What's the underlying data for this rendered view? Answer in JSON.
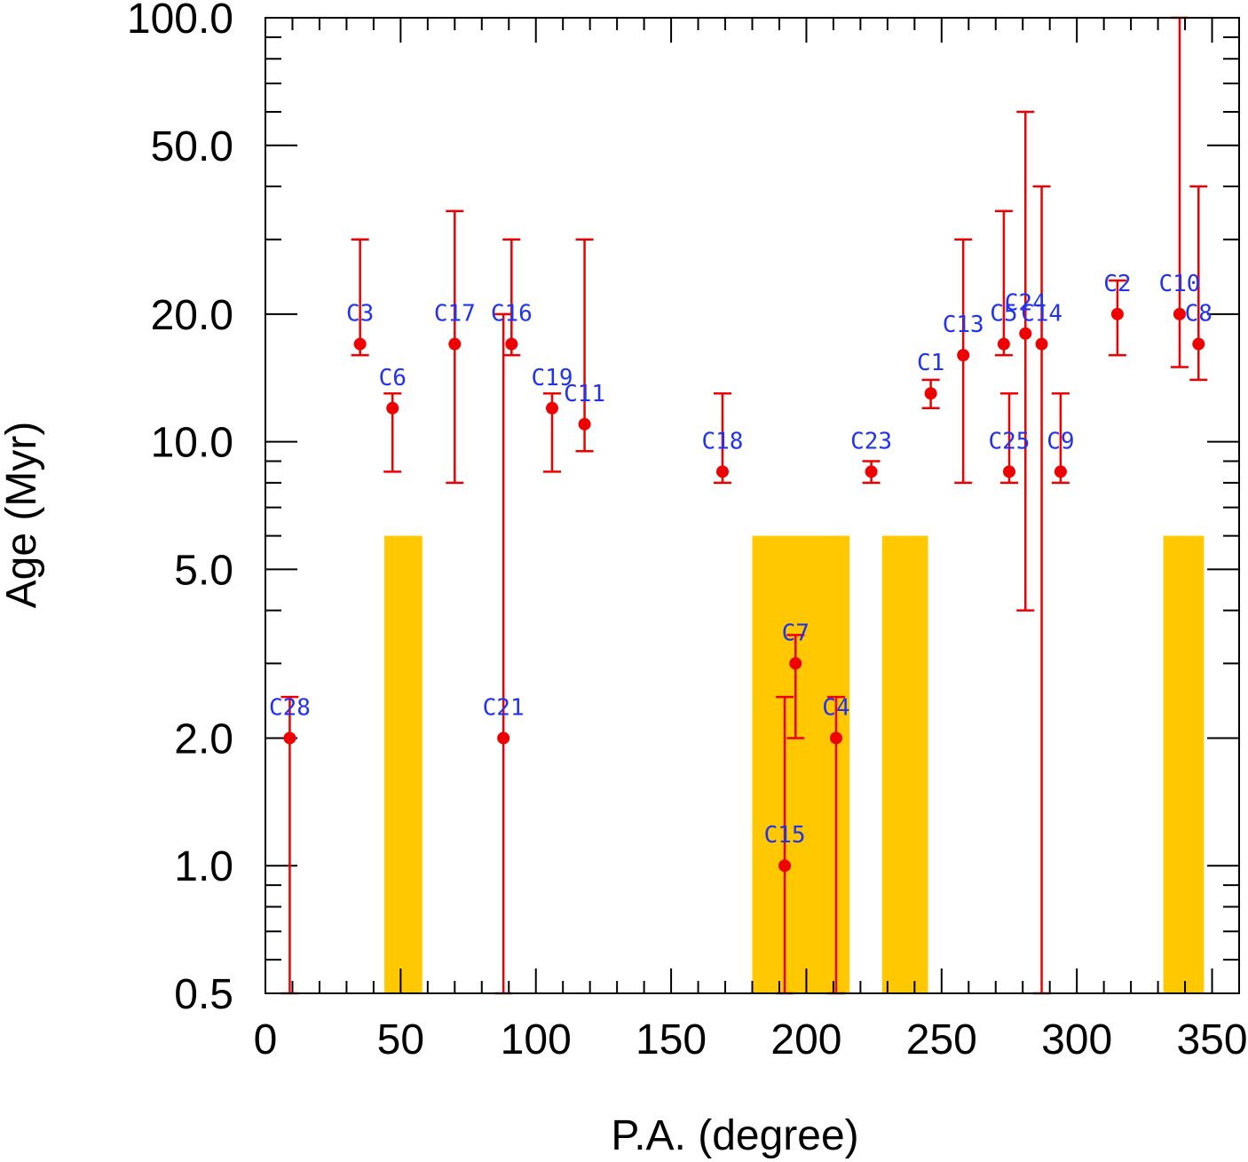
{
  "chart_data": {
    "type": "scatter",
    "title": "",
    "xlabel": "P.A. (degree)",
    "ylabel": "Age (Myr)",
    "xlim": [
      0,
      360
    ],
    "ylim": [
      0.5,
      100
    ],
    "yscale": "log",
    "x_ticks": [
      0,
      50,
      100,
      150,
      200,
      250,
      300,
      350
    ],
    "x_tick_labels": [
      "0",
      "50",
      "100",
      "150",
      "200",
      "250",
      "300",
      "350"
    ],
    "y_ticks": [
      0.5,
      1,
      2,
      5,
      10,
      20,
      50,
      100
    ],
    "y_tick_labels": [
      "0.5",
      "1.0",
      "2.0",
      "5.0",
      "10.0",
      "20.0",
      "50.0",
      "100.0"
    ],
    "colors": {
      "points": "#ee0000",
      "labels": "#2233ee",
      "bands": "#ffc800",
      "axes": "#000000"
    },
    "bands": [
      {
        "x0": 44,
        "x1": 58,
        "ymax": 6.0
      },
      {
        "x0": 180,
        "x1": 216,
        "ymax": 6.0
      },
      {
        "x0": 228,
        "x1": 245,
        "ymax": 6.0
      },
      {
        "x0": 332,
        "x1": 347,
        "ymax": 6.0
      }
    ],
    "series": [
      {
        "name": "clusters",
        "points": [
          {
            "label": "C28",
            "x": 9,
            "y": 2.0,
            "ylow": 0.5,
            "yhigh": 2.5
          },
          {
            "label": "C3",
            "x": 35,
            "y": 17.0,
            "ylow": 16.0,
            "yhigh": 30.0
          },
          {
            "label": "C6",
            "x": 47,
            "y": 12.0,
            "ylow": 8.5,
            "yhigh": 13.0
          },
          {
            "label": "C17",
            "x": 70,
            "y": 17.0,
            "ylow": 8.0,
            "yhigh": 35.0
          },
          {
            "label": "C16",
            "x": 91,
            "y": 17.0,
            "ylow": 16.0,
            "yhigh": 30.0
          },
          {
            "label": "C21",
            "x": 88,
            "y": 2.0,
            "ylow": 0.5,
            "yhigh": 20.0
          },
          {
            "label": "C19",
            "x": 106,
            "y": 12.0,
            "ylow": 8.5,
            "yhigh": 13.0
          },
          {
            "label": "C11",
            "x": 118,
            "y": 11.0,
            "ylow": 9.5,
            "yhigh": 30.0
          },
          {
            "label": "C18",
            "x": 169,
            "y": 8.5,
            "ylow": 8.0,
            "yhigh": 13.0
          },
          {
            "label": "C7",
            "x": 196,
            "y": 3.0,
            "ylow": 2.0,
            "yhigh": 3.5
          },
          {
            "label": "C15",
            "x": 192,
            "y": 1.0,
            "ylow": 0.5,
            "yhigh": 2.5
          },
          {
            "label": "C4",
            "x": 211,
            "y": 2.0,
            "ylow": 0.5,
            "yhigh": 2.5
          },
          {
            "label": "C23",
            "x": 224,
            "y": 8.5,
            "ylow": 8.0,
            "yhigh": 9.0
          },
          {
            "label": "C1",
            "x": 246,
            "y": 13.0,
            "ylow": 12.0,
            "yhigh": 14.0
          },
          {
            "label": "C13",
            "x": 258,
            "y": 16.0,
            "ylow": 8.0,
            "yhigh": 30.0
          },
          {
            "label": "C5",
            "x": 273,
            "y": 17.0,
            "ylow": 16.0,
            "yhigh": 35.0
          },
          {
            "label": "C25",
            "x": 275,
            "y": 8.5,
            "ylow": 8.0,
            "yhigh": 13.0
          },
          {
            "label": "C24",
            "x": 281,
            "y": 18.0,
            "ylow": 4.0,
            "yhigh": 60.0
          },
          {
            "label": "C14",
            "x": 287,
            "y": 17.0,
            "ylow": 0.5,
            "yhigh": 40.0
          },
          {
            "label": "C9",
            "x": 294,
            "y": 8.5,
            "ylow": 8.0,
            "yhigh": 13.0
          },
          {
            "label": "C2",
            "x": 315,
            "y": 20.0,
            "ylow": 16.0,
            "yhigh": 24.0
          },
          {
            "label": "C10",
            "x": 338,
            "y": 20.0,
            "ylow": 15.0,
            "yhigh": 100.0
          },
          {
            "label": "C8",
            "x": 345,
            "y": 17.0,
            "ylow": 14.0,
            "yhigh": 40.0
          }
        ]
      }
    ]
  }
}
